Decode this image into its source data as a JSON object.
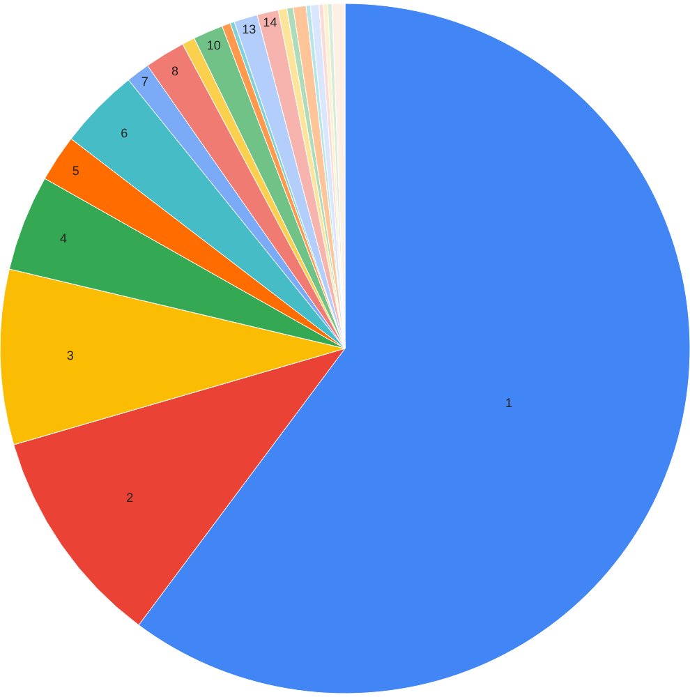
{
  "chart_data": {
    "type": "pie",
    "categories": [
      "1",
      "2",
      "3",
      "4",
      "5",
      "6",
      "7",
      "8",
      null,
      "10",
      null,
      null,
      "13",
      "14",
      null,
      null,
      null,
      null,
      null,
      null,
      null,
      null,
      null
    ],
    "values": [
      60.2,
      10.3,
      8.2,
      4.5,
      2.2,
      3.8,
      1.1,
      1.9,
      0.6,
      1.4,
      0.4,
      0.2,
      1.1,
      1.0,
      0.4,
      0.3,
      0.6,
      0.2,
      0.4,
      0.2,
      0.2,
      0.2,
      0.6
    ],
    "colors": [
      "#4285f4",
      "#ea4335",
      "#fbbc04",
      "#34a853",
      "#ff6d01",
      "#46bdc6",
      "#7baaf7",
      "#f07b72",
      "#fcd04f",
      "#71c287",
      "#ff994d",
      "#7ed1d7",
      "#b3cefb",
      "#f7b4ae",
      "#fde49b",
      "#aedcba",
      "#ffc599",
      "#b5e5e8",
      "#d9e6fd",
      "#fbdad7",
      "#fef1cd",
      "#d6eddc",
      "#fff0e5"
    ]
  }
}
